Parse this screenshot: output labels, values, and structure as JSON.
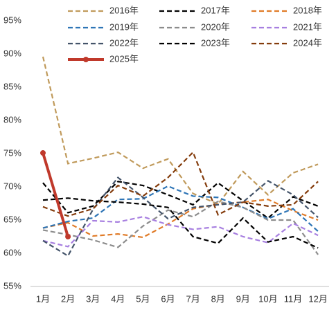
{
  "chart_data": {
    "type": "line",
    "categories": [
      "1月",
      "2月",
      "3月",
      "4月",
      "5月",
      "6月",
      "7月",
      "8月",
      "9月",
      "10月",
      "11月",
      "12月"
    ],
    "ylim": [
      55,
      95
    ],
    "yticks": [
      {
        "value": 55,
        "label": "55%"
      },
      {
        "value": 60,
        "label": "60%"
      },
      {
        "value": 65,
        "label": "65%"
      },
      {
        "value": 70,
        "label": "70%"
      },
      {
        "value": 75,
        "label": "75%"
      },
      {
        "value": 80,
        "label": "80%"
      },
      {
        "value": 85,
        "label": "85%"
      },
      {
        "value": 90,
        "label": "90%"
      },
      {
        "value": 95,
        "label": "95%"
      }
    ],
    "series": [
      {
        "name": "2016年",
        "color": "#c09a5b",
        "dash": true,
        "values": [
          89.6,
          73.5,
          74.3,
          75.2,
          72.8,
          74.2,
          69,
          67.4,
          72.3,
          68.8,
          72.1,
          73.4
        ]
      },
      {
        "name": "2017年",
        "color": "#000000",
        "dash": true,
        "values": [
          70.6,
          66.1,
          67.1,
          70.8,
          70.2,
          68.8,
          67.3,
          70.6,
          67.9,
          65.3,
          68.5,
          67.1
        ]
      },
      {
        "name": "2018年",
        "color": "#e07b28",
        "dash": true,
        "values": [
          63.8,
          64.6,
          62.6,
          62.9,
          62.4,
          64.4,
          66.7,
          67.4,
          67.7,
          68.1,
          66.4,
          65
        ]
      },
      {
        "name": "2019年",
        "color": "#2e75b6",
        "dash": true,
        "values": [
          63.8,
          64.8,
          65.3,
          68.1,
          68.2,
          70.1,
          68.6,
          68.4,
          66.9,
          65.2,
          66.7,
          63.3
        ]
      },
      {
        "name": "2020年",
        "color": "#8c8c8c",
        "dash": true,
        "values": [
          63.5,
          62.8,
          62,
          60.9,
          64.1,
          66.5,
          65.5,
          67.8,
          66.9,
          65,
          65,
          59.8
        ]
      },
      {
        "name": "2021年",
        "color": "#a77fe0",
        "dash": true,
        "values": [
          61.9,
          61,
          64.9,
          64.7,
          65.5,
          64.3,
          63.6,
          64,
          62.5,
          61.6,
          64.5,
          62.7
        ]
      },
      {
        "name": "2022年",
        "color": "#44546a",
        "dash": true,
        "values": [
          61.9,
          59.6,
          66.6,
          71.4,
          68.4,
          65.2,
          66.9,
          67.3,
          67.7,
          70.9,
          68.8,
          65.4
        ]
      },
      {
        "name": "2023年",
        "color": "#000000",
        "dash": true,
        "values": [
          68,
          68.3,
          67.9,
          67.7,
          67.4,
          66.9,
          62.5,
          61.5,
          65.3,
          61.7,
          62.5,
          60.8
        ]
      },
      {
        "name": "2024年",
        "color": "#843c0c",
        "dash": true,
        "values": [
          67,
          65.6,
          66.7,
          70.2,
          68.6,
          71.4,
          75.2,
          65.8,
          67.7,
          67.1,
          67.3,
          70.8
        ]
      },
      {
        "name": "2025年",
        "color": "#c0392b",
        "dash": false,
        "values": [
          75.1,
          62.5,
          null,
          null,
          null,
          null,
          null,
          null,
          null,
          null,
          null,
          null
        ]
      }
    ]
  }
}
